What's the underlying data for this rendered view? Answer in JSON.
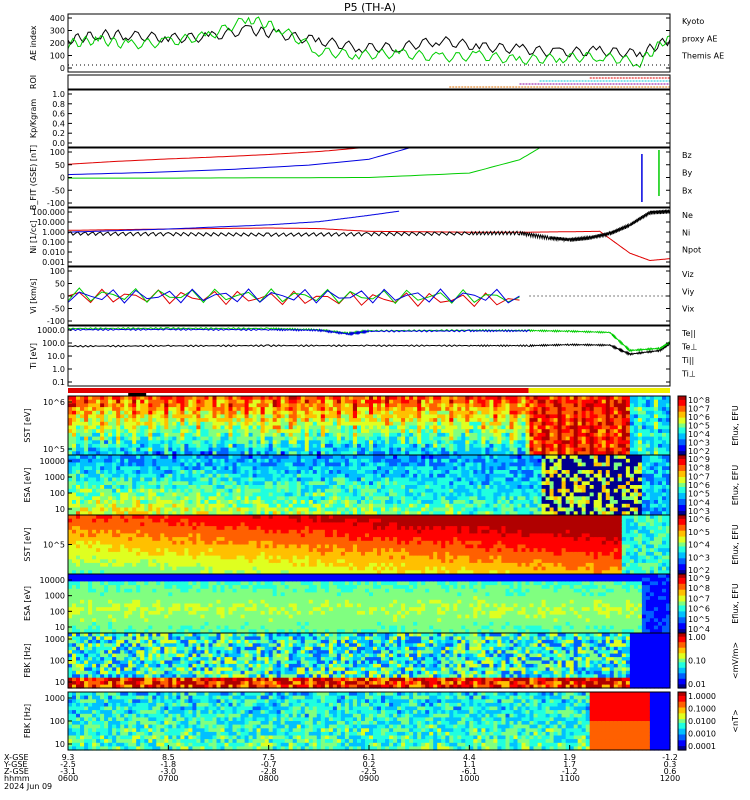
{
  "title": "P5 (TH-A)",
  "colors": {
    "black": "#000000",
    "red": "#e00000",
    "green": "#00cc00",
    "blue": "#0000e0",
    "cyan": "#00c8d8",
    "orange": "#e07000",
    "purple": "#9000a0"
  },
  "chart_data": [
    {
      "type": "line",
      "panel": "ae",
      "ylabel": "AE index",
      "yticks": [
        "400",
        "300",
        "200",
        "100",
        "0"
      ],
      "ylim": [
        -60,
        420
      ],
      "legend": [
        {
          "label": "Kyoto",
          "color": "#00cc00"
        },
        {
          "label": "proxy AE",
          "color": "#00cc00"
        },
        {
          "label": "Themis AE",
          "color": "#000000"
        }
      ],
      "x": [
        0.0,
        0.3,
        0.6,
        1.0,
        1.4,
        1.8,
        2.1,
        2.5,
        2.9,
        3.3,
        3.7,
        4.1,
        4.5,
        4.9,
        5.3,
        5.7,
        6.0
      ],
      "series": [
        {
          "name": "Themis AE",
          "color": "#000000",
          "values": [
            205,
            250,
            245,
            220,
            230,
            290,
            250,
            200,
            140,
            145,
            200,
            150,
            130,
            100,
            115,
            90,
            210
          ]
        },
        {
          "name": "Kyoto",
          "color": "#00cc00",
          "values": [
            170,
            210,
            165,
            190,
            240,
            380,
            305,
            110,
            80,
            95,
            60,
            75,
            40,
            55,
            70,
            20,
            240
          ]
        }
      ]
    },
    {
      "type": "line",
      "panel": "roi",
      "ylabel": "ROI",
      "yticks": [],
      "series": [
        {
          "name": "roi-orange",
          "color": "#e07000",
          "x": [
            3.8,
            6.0
          ],
          "values": [
            3,
            3
          ]
        },
        {
          "name": "roi-purple",
          "color": "#9000a0",
          "x": [
            4.5,
            6.0
          ],
          "values": [
            2,
            2
          ]
        },
        {
          "name": "roi-cyan",
          "color": "#00c8d8",
          "x": [
            4.7,
            6.0
          ],
          "values": [
            1,
            1
          ]
        },
        {
          "name": "roi-red",
          "color": "#e00000",
          "x": [
            5.2,
            6.0
          ],
          "values": [
            0,
            0
          ]
        }
      ]
    },
    {
      "type": "line",
      "panel": "kp",
      "ylabel": "Kp/Kgram",
      "yticks": [
        "1.0",
        "0.8",
        "0.6",
        "0.4",
        "0.2",
        "0.0"
      ],
      "ylim": [
        0,
        1
      ],
      "series": []
    },
    {
      "type": "line",
      "panel": "bfit",
      "ylabel": "B_FIT (GSE) [nT]",
      "yticks": [
        "100",
        "50",
        "0",
        "-50",
        "-100"
      ],
      "ylim": [
        -100,
        100
      ],
      "legend": [
        {
          "label": "Bz",
          "color": "#e00000"
        },
        {
          "label": "By",
          "color": "#00cc00"
        },
        {
          "label": "Bx",
          "color": "#0000e0"
        }
      ],
      "series": [
        {
          "name": "Bz",
          "color": "#e00000",
          "x": [
            0.0,
            0.5,
            1.0,
            1.5,
            2.0,
            2.5,
            2.9
          ],
          "values": [
            45,
            55,
            63,
            70,
            78,
            88,
            100
          ]
        },
        {
          "name": "By",
          "color": "#00cc00",
          "x": [
            0.0,
            1.0,
            2.0,
            3.0,
            4.0,
            4.5,
            4.7
          ],
          "values": [
            -2,
            -2,
            -1,
            0,
            15,
            60,
            100
          ]
        },
        {
          "name": "Bx",
          "color": "#0000e0",
          "x": [
            0.0,
            0.8,
            1.6,
            2.4,
            3.0,
            3.4
          ],
          "values": [
            10,
            17,
            27,
            42,
            62,
            100
          ]
        }
      ]
    },
    {
      "type": "line",
      "panel": "ni",
      "ylabel": "Ni [1/cc]",
      "yticks": [
        "100.000",
        "10.000",
        "1.000",
        "0.100",
        "0.010",
        "0.001"
      ],
      "ylim": [
        0.0006,
        200
      ],
      "scale": "log",
      "legend": [
        {
          "label": "Ne",
          "color": "#e00000"
        },
        {
          "label": "Ni",
          "color": "#000000"
        },
        {
          "label": "Npot",
          "color": "#0000e0"
        }
      ],
      "series": [
        {
          "name": "Ne",
          "color": "#e00000",
          "x": [
            0.0,
            1.0,
            2.0,
            2.5,
            3.0,
            4.0,
            4.6,
            5.0,
            5.3,
            5.6,
            5.8,
            6.0
          ],
          "values": [
            1.5,
            2.0,
            2.5,
            2.2,
            1.2,
            1.0,
            1.0,
            1.1,
            1.2,
            0.01,
            0.002,
            0.003
          ]
        },
        {
          "name": "Ni",
          "color": "#000000",
          "x": [
            0.0,
            1.0,
            2.0,
            3.0,
            4.0,
            4.5,
            4.8,
            5.0,
            5.2,
            5.4,
            5.6,
            5.8,
            6.0
          ],
          "values": [
            0.8,
            0.7,
            0.6,
            0.7,
            0.8,
            0.9,
            0.3,
            0.2,
            0.3,
            0.8,
            5,
            80,
            100
          ]
        },
        {
          "name": "Npot",
          "color": "#0000e0",
          "x": [
            0.0,
            1.0,
            2.0,
            2.5,
            3.0,
            3.3
          ],
          "values": [
            1.0,
            2.0,
            5.0,
            10.0,
            40.0,
            100.0
          ]
        }
      ]
    },
    {
      "type": "line",
      "panel": "vi",
      "ylabel": "Vi [km/s]",
      "yticks": [
        "100",
        "50",
        "0",
        "-50",
        "-100"
      ],
      "ylim": [
        -140,
        140
      ],
      "legend": [
        {
          "label": "Viz",
          "color": "#e00000"
        },
        {
          "label": "Viy",
          "color": "#00cc00"
        },
        {
          "label": "Vix",
          "color": "#0000e0"
        }
      ],
      "series": [
        {
          "name": "Viz",
          "color": "#e00000",
          "x": [
            0.0,
            4.5
          ],
          "values": [
            0,
            -20
          ]
        },
        {
          "name": "Viy",
          "color": "#00cc00",
          "x": [
            0.0,
            4.5
          ],
          "values": [
            5,
            -5
          ]
        },
        {
          "name": "Vix",
          "color": "#0000e0",
          "x": [
            0.0,
            4.5
          ],
          "values": [
            0,
            0
          ]
        }
      ]
    },
    {
      "type": "line",
      "panel": "ti",
      "ylabel": "Ti [eV]",
      "yticks": [
        "1000.0",
        "100.0",
        "10.0",
        "1.0",
        "0.1"
      ],
      "ylim": [
        0.05,
        4000
      ],
      "scale": "log",
      "legend": [
        {
          "label": "Te||",
          "color": "#000000"
        },
        {
          "label": "Te⊥",
          "color": "#e00000"
        },
        {
          "label": "Ti||",
          "color": "#00cc00"
        },
        {
          "label": "Ti⊥",
          "color": "#0000e0"
        }
      ],
      "series": [
        {
          "name": "Te||",
          "color": "#000000",
          "x": [
            0.0,
            1.0,
            2.0,
            3.0,
            4.0,
            4.6,
            5.0,
            5.4,
            5.6,
            5.9,
            6.0
          ],
          "values": [
            90,
            95,
            100,
            100,
            100,
            100,
            120,
            110,
            20,
            40,
            150
          ]
        },
        {
          "name": "Ti||",
          "color": "#00cc00",
          "x": [
            0.0,
            1.0,
            2.0,
            2.5,
            2.8,
            3.0,
            4.0,
            4.6,
            5.0,
            5.4,
            5.6,
            5.9,
            6.0
          ],
          "values": [
            2500,
            2600,
            2500,
            2000,
            1000,
            1600,
            1800,
            1700,
            1500,
            1200,
            40,
            60,
            200
          ]
        },
        {
          "name": "Ti⊥",
          "color": "#0000e0",
          "x": [
            0.0,
            1.0,
            2.0,
            2.5,
            2.8,
            3.0,
            4.0,
            4.6
          ],
          "values": [
            2000,
            2100,
            2000,
            1800,
            900,
            1500,
            1600,
            1600
          ]
        }
      ]
    },
    {
      "type": "heatmap",
      "panel": "sst-eflux-i",
      "ylabel": "SST [eV]",
      "yticks": [
        "10^6",
        "10^5"
      ],
      "colorbar_label": "Eflux, EFU",
      "colorbar_ticks": [
        "10^8",
        "10^7",
        "10^6",
        "10^5",
        "10^4",
        "10^3",
        "10^2"
      ]
    },
    {
      "type": "heatmap",
      "panel": "esa-eflux-i",
      "ylabel": "ESA [eV]",
      "yticks": [
        "10000",
        "1000",
        "100",
        "10"
      ],
      "colorbar_label": "Eflux, EFU",
      "colorbar_ticks": [
        "10^9",
        "10^8",
        "10^7",
        "10^6",
        "10^5",
        "10^4",
        "10^3"
      ]
    },
    {
      "type": "heatmap",
      "panel": "sst-eflux-e",
      "ylabel": "SST [eV]",
      "yticks": [
        "10^5"
      ],
      "colorbar_label": "Eflux, EFU",
      "colorbar_ticks": [
        "10^6",
        "10^5",
        "10^4",
        "10^3",
        "10^2"
      ]
    },
    {
      "type": "heatmap",
      "panel": "esa-eflux-e",
      "ylabel": "ESA [eV]",
      "yticks": [
        "10000",
        "1000",
        "100",
        "10"
      ],
      "colorbar_label": "Eflux, EFU",
      "colorbar_ticks": [
        "10^9",
        "10^8",
        "10^7",
        "10^6",
        "10^5",
        "10^4"
      ]
    },
    {
      "type": "heatmap",
      "panel": "fbk-e",
      "ylabel": "FBK [Hz]",
      "yticks": [
        "1000",
        "100",
        "10"
      ],
      "colorbar_label": "<mV/m>",
      "colorbar_ticks": [
        "1.00",
        "0.10",
        "0.01"
      ]
    },
    {
      "type": "heatmap",
      "panel": "fbk-b",
      "ylabel": "FBK [Hz]",
      "yticks": [
        "1000",
        "100",
        "10"
      ],
      "colorbar_label": "<nT>",
      "colorbar_ticks": [
        "1.0000",
        "0.1000",
        "0.0100",
        "0.0010",
        "0.0001"
      ]
    }
  ],
  "xaxis": {
    "row_labels": [
      "X-GSE",
      "Y-GSE",
      "Z-GSE",
      "hhmm",
      "2024 Jun 09"
    ],
    "columns": [
      {
        "x": "9.3",
        "y": "-2.5",
        "z": "-3.1",
        "t": "0600"
      },
      {
        "x": "8.5",
        "y": "-1.8",
        "z": "-3.0",
        "t": "0700"
      },
      {
        "x": "7.5",
        "y": "-0.7",
        "z": "-2.8",
        "t": "0800"
      },
      {
        "x": "6.1",
        "y": "0.2",
        "z": "-2.5",
        "t": "0900"
      },
      {
        "x": "4.4",
        "y": "1.1",
        "z": "-6.1",
        "t": "1000"
      },
      {
        "x": "1.9",
        "y": "1.7",
        "z": "-1.2",
        "t": "1100"
      },
      {
        "x": "-1.2",
        "y": "0.3",
        "z": "0.6",
        "t": "1200"
      }
    ]
  }
}
